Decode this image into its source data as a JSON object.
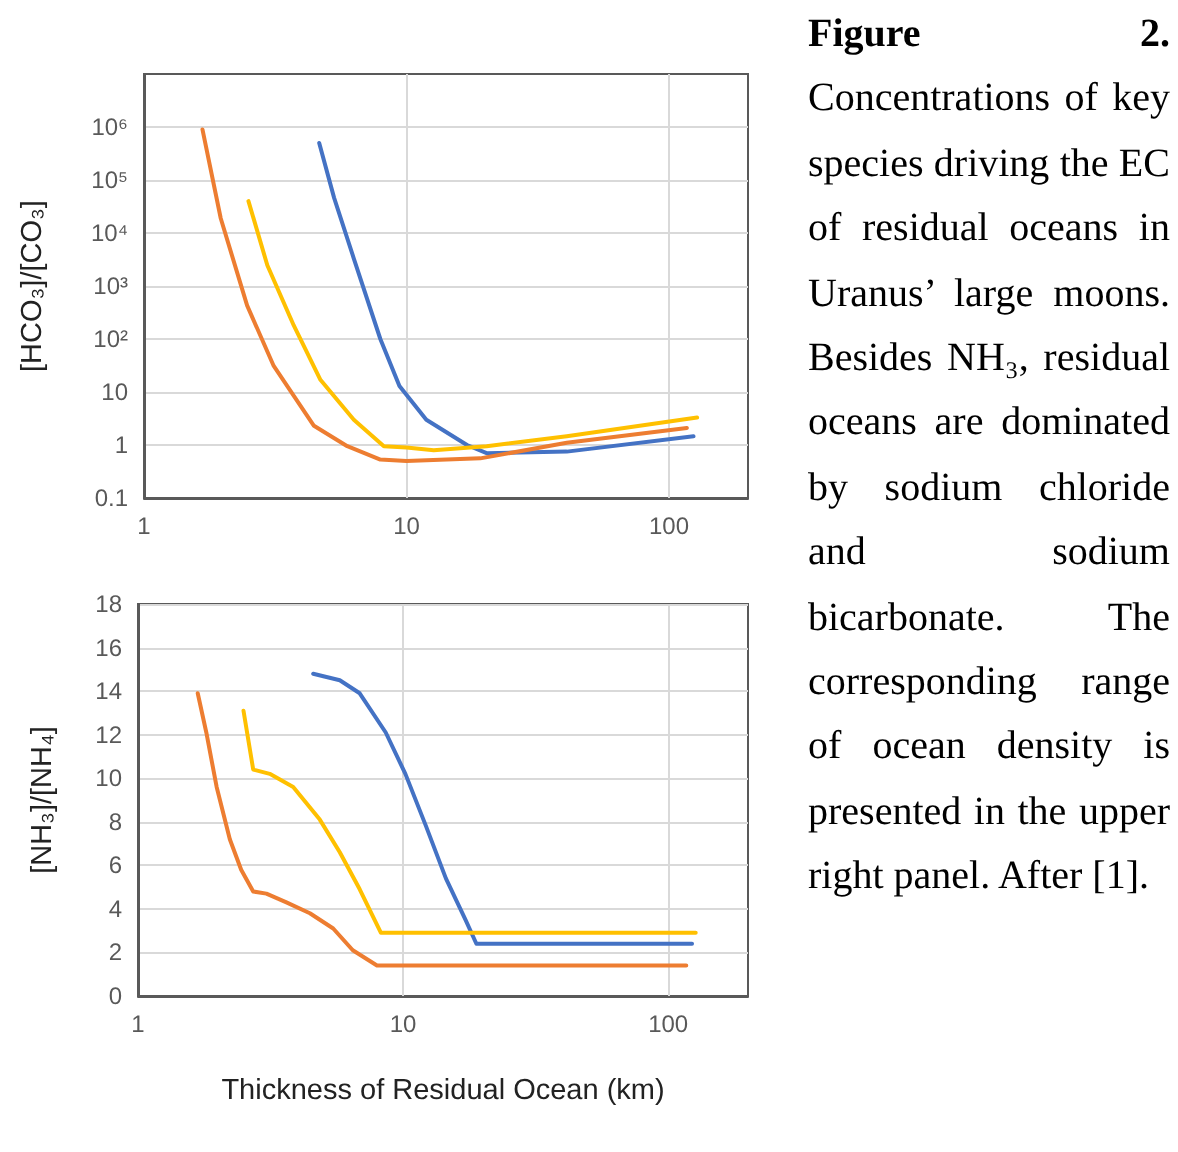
{
  "chart_data": [
    {
      "type": "line",
      "ylabel": "[HCO₃]/[CO₃]",
      "log": "xy",
      "grid": true,
      "marker": "none",
      "line_style": "solid",
      "xlim": [
        1,
        200
      ],
      "xticks": [
        1,
        10,
        100
      ],
      "ylim": [
        0.1,
        10000000
      ],
      "yticks": [
        0.1,
        1,
        10,
        {
          "value": 100,
          "label": "10²"
        },
        {
          "value": 1000,
          "label": "10³"
        },
        {
          "value": 10000,
          "label": "10⁴"
        },
        {
          "value": 100000,
          "label": "10⁵"
        },
        {
          "value": 1000000,
          "label": "10⁶"
        }
      ],
      "series": [
        {
          "color": "#4472c4",
          "x": [
            4.65,
            5.3,
            6.3,
            7.95,
            9.4,
            11.9,
            17,
            20.2,
            40.8,
            124
          ],
          "values": [
            500000,
            46000,
            3300,
            100,
            13,
            3,
            1,
            0.7,
            0.75,
            1.46
          ]
        },
        {
          "color": "#ed7d31",
          "x": [
            1.67,
            1.96,
            2.47,
            3.12,
            4.44,
            5.95,
            7.95,
            10,
            19.1,
            40.8,
            117
          ],
          "values": [
            900000,
            19000,
            430,
            31,
            2.3,
            0.95,
            0.53,
            0.5,
            0.56,
            1.1,
            2.1
          ]
        },
        {
          "color": "#ffc000",
          "x": [
            2.5,
            2.95,
            3.72,
            4.7,
            6.3,
            8.2,
            10,
            12.7,
            20.2,
            40.8,
            128
          ],
          "values": [
            40000,
            2460,
            180,
            17,
            3,
            0.95,
            0.9,
            0.8,
            0.95,
            1.46,
            3.3
          ]
        }
      ]
    },
    {
      "type": "line",
      "xlabel": "Thickness of Residual Ocean (km)",
      "ylabel": "[NH₃]/[NH₄]",
      "log": "x",
      "grid": true,
      "marker": "none",
      "line_style": "solid",
      "xlim": [
        1,
        200
      ],
      "xticks": [
        1,
        10,
        100
      ],
      "ylim": [
        0,
        18
      ],
      "yticks": [
        0,
        2,
        4,
        6,
        8,
        10,
        12,
        14,
        16,
        18
      ],
      "series": [
        {
          "color": "#4472c4",
          "x": [
            4.58,
            5.77,
            6.86,
            8.6,
            10.2,
            12.2,
            14.5,
            17.2,
            18.9,
            123
          ],
          "values": [
            14.8,
            14.5,
            13.9,
            12.1,
            10.2,
            7.8,
            5.4,
            3.5,
            2.4,
            2.4
          ]
        },
        {
          "color": "#ed7d31",
          "x": [
            1.68,
            1.81,
            1.98,
            2.22,
            2.45,
            2.72,
            3.05,
            3.63,
            4.45,
            5.45,
            6.46,
            7.97,
            117
          ],
          "values": [
            13.9,
            12.1,
            9.6,
            7.2,
            5.8,
            4.8,
            4.7,
            4.3,
            3.8,
            3.1,
            2.1,
            1.4,
            1.4
          ]
        },
        {
          "color": "#ffc000",
          "x": [
            2.5,
            2.72,
            3.14,
            3.85,
            4.85,
            5.77,
            6.86,
            8.25,
            127
          ],
          "values": [
            13.1,
            10.4,
            10.2,
            9.6,
            8.1,
            6.6,
            4.9,
            2.9,
            2.9
          ]
        }
      ]
    },
    {
      "type": "other",
      "title": "Figure 2.",
      "annotations": [
        "Concentrations of key species driving the EC of residual oceans in Uranus’ large moons. Besides NH₃, residual oceans are dominated by sodium chloride and sodium bicarbonate. The corresponding range of ocean density is presented in the upper right panel. After [1]."
      ]
    }
  ]
}
